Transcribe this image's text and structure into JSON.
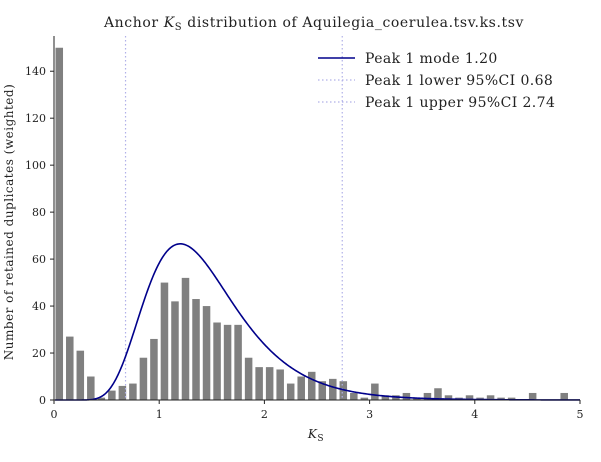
{
  "chart_data": {
    "type": "bar",
    "title_parts": {
      "before": "Anchor ",
      "symbol": "K",
      "subscript": "S",
      "after": " distribution of Aquilegia_coerulea.tsv.ks.tsv"
    },
    "xlabel": {
      "symbol": "K",
      "subscript": "S"
    },
    "ylabel": "Number of retained duplicates (weighted)",
    "xlim": [
      0,
      5
    ],
    "ylim": [
      0,
      155
    ],
    "xticks": [
      "0",
      "1",
      "2",
      "3",
      "4",
      "5"
    ],
    "yticks": [
      "0",
      "20",
      "40",
      "60",
      "80",
      "100",
      "120",
      "140"
    ],
    "bin_width": 0.1,
    "bar_color": "#808080",
    "bins": [
      {
        "x": 0.05,
        "y": 150
      },
      {
        "x": 0.15,
        "y": 27
      },
      {
        "x": 0.25,
        "y": 21
      },
      {
        "x": 0.35,
        "y": 10
      },
      {
        "x": 0.45,
        "y": 1
      },
      {
        "x": 0.55,
        "y": 4
      },
      {
        "x": 0.65,
        "y": 6
      },
      {
        "x": 0.75,
        "y": 7
      },
      {
        "x": 0.85,
        "y": 18
      },
      {
        "x": 0.95,
        "y": 26
      },
      {
        "x": 1.05,
        "y": 50
      },
      {
        "x": 1.15,
        "y": 42
      },
      {
        "x": 1.25,
        "y": 52
      },
      {
        "x": 1.35,
        "y": 43
      },
      {
        "x": 1.45,
        "y": 40
      },
      {
        "x": 1.55,
        "y": 33
      },
      {
        "x": 1.65,
        "y": 32
      },
      {
        "x": 1.75,
        "y": 32
      },
      {
        "x": 1.85,
        "y": 18
      },
      {
        "x": 1.95,
        "y": 14
      },
      {
        "x": 2.05,
        "y": 14
      },
      {
        "x": 2.15,
        "y": 13
      },
      {
        "x": 2.25,
        "y": 7
      },
      {
        "x": 2.35,
        "y": 10
      },
      {
        "x": 2.45,
        "y": 12
      },
      {
        "x": 2.55,
        "y": 8
      },
      {
        "x": 2.65,
        "y": 9
      },
      {
        "x": 2.75,
        "y": 8
      },
      {
        "x": 2.85,
        "y": 3
      },
      {
        "x": 2.95,
        "y": 1
      },
      {
        "x": 3.05,
        "y": 7
      },
      {
        "x": 3.15,
        "y": 2
      },
      {
        "x": 3.25,
        "y": 2
      },
      {
        "x": 3.35,
        "y": 3
      },
      {
        "x": 3.45,
        "y": 1
      },
      {
        "x": 3.55,
        "y": 3
      },
      {
        "x": 3.65,
        "y": 5
      },
      {
        "x": 3.75,
        "y": 2
      },
      {
        "x": 3.85,
        "y": 1
      },
      {
        "x": 3.95,
        "y": 2
      },
      {
        "x": 4.05,
        "y": 1
      },
      {
        "x": 4.15,
        "y": 2
      },
      {
        "x": 4.25,
        "y": 1
      },
      {
        "x": 4.35,
        "y": 1
      },
      {
        "x": 4.55,
        "y": 3
      },
      {
        "x": 4.85,
        "y": 3
      }
    ],
    "peak_curve": {
      "name": "Peak 1 mode 1.20",
      "color": "#00008b",
      "mode": 1.2,
      "peak_height": 66.5
    },
    "ci_lines": [
      {
        "name": "Peak 1 lower 95%CI 0.68",
        "x": 0.68,
        "color": "#b0b0e8"
      },
      {
        "name": "Peak 1 upper 95%CI 2.74",
        "x": 2.74,
        "color": "#b0b0e8"
      }
    ],
    "legend_position": "top-right",
    "grid": false
  }
}
